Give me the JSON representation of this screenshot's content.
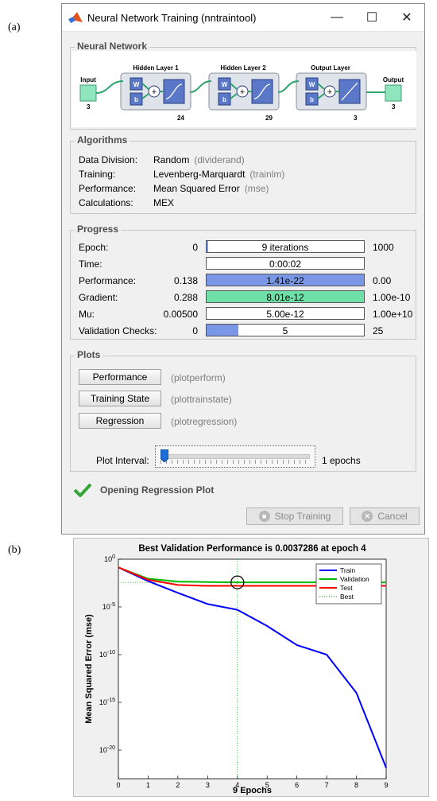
{
  "panel_labels": {
    "a": "(a)",
    "b": "(b)"
  },
  "window": {
    "title": "Neural Network Training (nntraintool)",
    "controls": {
      "minimize": "—",
      "maximize": "☐",
      "close": "✕"
    }
  },
  "neural_network": {
    "heading": "Neural Network",
    "input": {
      "label": "Input",
      "size": "3"
    },
    "layers": [
      {
        "label": "Hidden Layer 1",
        "size": "24",
        "w": "W",
        "b": "b",
        "activation": "tansig"
      },
      {
        "label": "Hidden Layer 2",
        "size": "29",
        "w": "W",
        "b": "b",
        "activation": "tansig"
      },
      {
        "label": "Output Layer",
        "size": "3",
        "w": "W",
        "b": "b",
        "activation": "purelin"
      }
    ],
    "output": {
      "label": "Output",
      "size": "3"
    },
    "sum_symbol": "+"
  },
  "algorithms": {
    "heading": "Algorithms",
    "rows": [
      {
        "label": "Data Division:",
        "value": "Random",
        "fn": "(dividerand)"
      },
      {
        "label": "Training:",
        "value": "Levenberg-Marquardt",
        "fn": "(trainlm)"
      },
      {
        "label": "Performance:",
        "value": "Mean Squared Error",
        "fn": "(mse)"
      },
      {
        "label": "Calculations:",
        "value": "MEX",
        "fn": ""
      }
    ]
  },
  "progress": {
    "heading": "Progress",
    "rows": [
      {
        "label": "Epoch:",
        "min": "0",
        "text": "9 iterations",
        "max": "1000",
        "fill_fraction": 0.009,
        "fill_color": "#7a97e6"
      },
      {
        "label": "Time:",
        "min": "",
        "text": "0:00:02",
        "max": "",
        "fill_fraction": 0,
        "fill_color": "#7a97e6"
      },
      {
        "label": "Performance:",
        "min": "0.138",
        "text": "1.41e-22",
        "max": "0.00",
        "fill_fraction": 1.0,
        "fill_color": "#7a97e6"
      },
      {
        "label": "Gradient:",
        "min": "0.288",
        "text": "8.01e-12",
        "max": "1.00e-10",
        "fill_fraction": 1.0,
        "fill_color": "#6ee0a8"
      },
      {
        "label": "Mu:",
        "min": "0.00500",
        "text": "5.00e-12",
        "max": "1.00e+10",
        "fill_fraction": 0,
        "fill_color": "#7a97e6"
      },
      {
        "label": "Validation Checks:",
        "min": "0",
        "text": "5",
        "max": "25",
        "fill_fraction": 0.2,
        "fill_color": "#7a97e6"
      }
    ]
  },
  "plots": {
    "heading": "Plots",
    "buttons": [
      {
        "label": "Performance",
        "fn": "(plotperform)"
      },
      {
        "label": "Training State",
        "fn": "(plottrainstate)"
      },
      {
        "label": "Regression",
        "fn": "(plotregression)"
      }
    ],
    "interval_label": "Plot Interval:",
    "interval_value": "1 epochs",
    "slider_fraction": 0
  },
  "status": {
    "text": "Opening Regression Plot"
  },
  "buttons": {
    "stop_training": "Stop Training",
    "cancel": "Cancel"
  },
  "chart_data": {
    "type": "line",
    "title": "Best Validation Performance is 0.0037286 at epoch 4",
    "xlabel": "9 Epochs",
    "ylabel": "Mean Squared Error  (mse)",
    "x": [
      0,
      1,
      2,
      3,
      4,
      5,
      6,
      7,
      8,
      9
    ],
    "xlim": [
      0,
      9
    ],
    "yscale": "log",
    "ylim": [
      1e-23,
      1
    ],
    "xticks": [
      "0",
      "1",
      "2",
      "3",
      "4",
      "5",
      "6",
      "7",
      "8",
      "9"
    ],
    "yticks": [
      {
        "value": 1,
        "base": "10",
        "exp": "0"
      },
      {
        "value": 1e-05,
        "base": "10",
        "exp": "-5"
      },
      {
        "value": 1e-10,
        "base": "10",
        "exp": "-10"
      },
      {
        "value": 1e-15,
        "base": "10",
        "exp": "-15"
      },
      {
        "value": 1e-20,
        "base": "10",
        "exp": "-20"
      }
    ],
    "series": [
      {
        "name": "Train",
        "color": "#0000ff",
        "values": [
          0.138,
          0.005,
          0.0003,
          2e-05,
          5e-06,
          1e-07,
          1e-09,
          1e-10,
          1e-14,
          1.41e-22
        ]
      },
      {
        "name": "Validation",
        "color": "#00bb00",
        "values": [
          0.138,
          0.009,
          0.0045,
          0.004,
          0.0037286,
          0.0037,
          0.0037,
          0.0037,
          0.0037,
          0.0037
        ]
      },
      {
        "name": "Test",
        "color": "#ff0000",
        "values": [
          0.138,
          0.007,
          0.002,
          0.0016,
          0.0016,
          0.0016,
          0.0016,
          0.0016,
          0.0016,
          0.0016
        ]
      },
      {
        "name": "Best",
        "color": "#00aa00",
        "style": "dotted"
      }
    ],
    "best": {
      "epoch": 4,
      "value": 0.0037286
    },
    "legend_position": "top-right",
    "grid": false
  }
}
